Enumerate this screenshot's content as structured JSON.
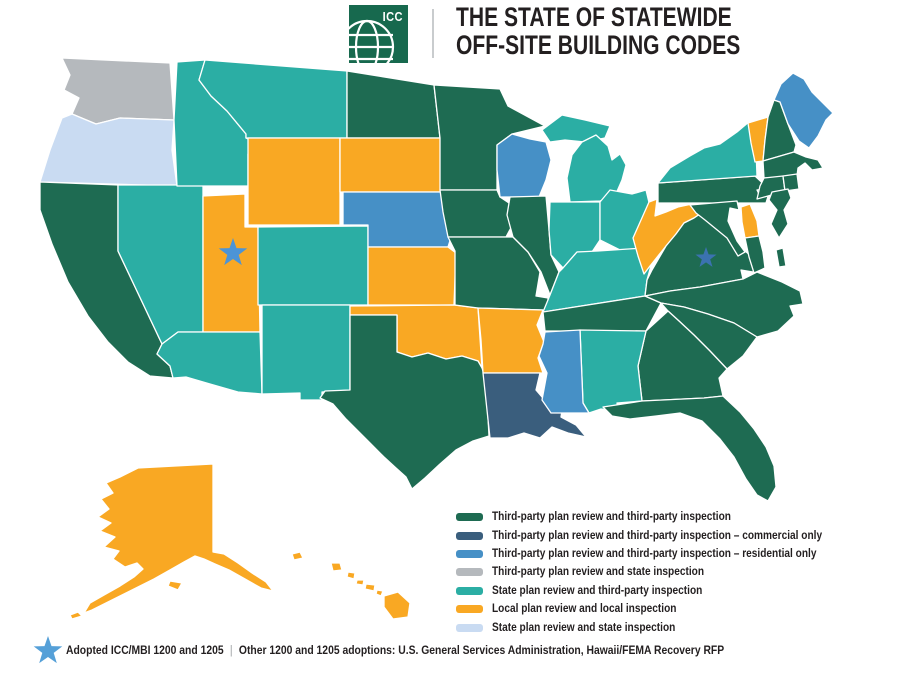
{
  "header": {
    "logo_text": "ICC",
    "logo_color": "#17694E",
    "title_line1": "THE STATE OF STATEWIDE",
    "title_line2": "OFF-SITE BUILDING CODES"
  },
  "legend": {
    "items": [
      {
        "key": "third_third",
        "label": "Third-party plan review and third-party inspection",
        "color": "#1E6B52"
      },
      {
        "key": "third_third_commercial",
        "label": "Third-party plan review and third-party inspection – commercial only",
        "color": "#3A5E7D"
      },
      {
        "key": "third_third_residential",
        "label": "Third-party plan review and third-party inspection – residential only",
        "color": "#4690C6"
      },
      {
        "key": "third_state",
        "label": "Third-party plan review and state inspection",
        "color": "#B5B9BD"
      },
      {
        "key": "state_third",
        "label": "State plan review and third-party inspection",
        "color": "#2BAEA4"
      },
      {
        "key": "local_local",
        "label": "Local plan review and local inspection",
        "color": "#F9A823"
      },
      {
        "key": "state_state",
        "label": "State plan review and state inspection",
        "color": "#C9DBF2"
      }
    ]
  },
  "footnote": {
    "star_color": "#4FX",
    "star_label": "Adopted ICC/MBI 1200 and 1205",
    "divider": "|",
    "other_text": "Other 1200 and 1205 adoptions: U.S. General Services Administration, Hawaii/FEMA Recovery RFP"
  },
  "map": {
    "border_color": "#FFFFFF",
    "stars": [
      {
        "state": "UT",
        "color": "#4C94D6"
      },
      {
        "state": "VA",
        "color": "#3B72B0"
      }
    ],
    "footnote_star_color": "#55A0D8",
    "states": [
      {
        "id": "WA",
        "name": "Washington",
        "category": "third_state"
      },
      {
        "id": "OR",
        "name": "Oregon",
        "category": "state_state"
      },
      {
        "id": "CA",
        "name": "California",
        "category": "third_third"
      },
      {
        "id": "NV",
        "name": "Nevada",
        "category": "state_third"
      },
      {
        "id": "ID",
        "name": "Idaho",
        "category": "state_third"
      },
      {
        "id": "MT",
        "name": "Montana",
        "category": "state_third"
      },
      {
        "id": "WY",
        "name": "Wyoming",
        "category": "local_local"
      },
      {
        "id": "UT",
        "name": "Utah",
        "category": "local_local"
      },
      {
        "id": "CO",
        "name": "Colorado",
        "category": "state_third"
      },
      {
        "id": "AZ",
        "name": "Arizona",
        "category": "state_third"
      },
      {
        "id": "NM",
        "name": "New Mexico",
        "category": "state_third"
      },
      {
        "id": "ND",
        "name": "North Dakota",
        "category": "third_third"
      },
      {
        "id": "SD",
        "name": "South Dakota",
        "category": "local_local"
      },
      {
        "id": "NE",
        "name": "Nebraska",
        "category": "third_third_residential"
      },
      {
        "id": "KS",
        "name": "Kansas",
        "category": "local_local"
      },
      {
        "id": "OK",
        "name": "Oklahoma",
        "category": "local_local"
      },
      {
        "id": "TX",
        "name": "Texas",
        "category": "third_third"
      },
      {
        "id": "MN",
        "name": "Minnesota",
        "category": "third_third"
      },
      {
        "id": "IA",
        "name": "Iowa",
        "category": "third_third"
      },
      {
        "id": "MO",
        "name": "Missouri",
        "category": "third_third"
      },
      {
        "id": "AR",
        "name": "Arkansas",
        "category": "local_local"
      },
      {
        "id": "LA",
        "name": "Louisiana",
        "category": "third_third_commercial"
      },
      {
        "id": "WI",
        "name": "Wisconsin",
        "category": "third_third_residential"
      },
      {
        "id": "IL",
        "name": "Illinois",
        "category": "third_third"
      },
      {
        "id": "MI",
        "name": "Michigan",
        "category": "state_third"
      },
      {
        "id": "IN",
        "name": "Indiana",
        "category": "state_third"
      },
      {
        "id": "OH",
        "name": "Ohio",
        "category": "state_third"
      },
      {
        "id": "KY",
        "name": "Kentucky",
        "category": "state_third"
      },
      {
        "id": "TN",
        "name": "Tennessee",
        "category": "third_third"
      },
      {
        "id": "MS",
        "name": "Mississippi",
        "category": "third_third_residential"
      },
      {
        "id": "AL",
        "name": "Alabama",
        "category": "state_third"
      },
      {
        "id": "GA",
        "name": "Georgia",
        "category": "third_third"
      },
      {
        "id": "FL",
        "name": "Florida",
        "category": "third_third"
      },
      {
        "id": "SC",
        "name": "South Carolina",
        "category": "third_third"
      },
      {
        "id": "NC",
        "name": "North Carolina",
        "category": "third_third"
      },
      {
        "id": "VA",
        "name": "Virginia",
        "category": "third_third"
      },
      {
        "id": "WV",
        "name": "West Virginia",
        "category": "local_local"
      },
      {
        "id": "MD",
        "name": "Maryland",
        "category": "third_third"
      },
      {
        "id": "DE",
        "name": "Delaware",
        "category": "local_local"
      },
      {
        "id": "PA",
        "name": "Pennsylvania",
        "category": "third_third"
      },
      {
        "id": "NJ",
        "name": "New Jersey",
        "category": "third_third"
      },
      {
        "id": "NY",
        "name": "New York",
        "category": "state_third"
      },
      {
        "id": "VT",
        "name": "Vermont",
        "category": "local_local"
      },
      {
        "id": "NH",
        "name": "New Hampshire",
        "category": "third_third"
      },
      {
        "id": "ME",
        "name": "Maine",
        "category": "third_third_residential"
      },
      {
        "id": "MA",
        "name": "Massachusetts",
        "category": "third_third"
      },
      {
        "id": "CT",
        "name": "Connecticut",
        "category": "third_third"
      },
      {
        "id": "RI",
        "name": "Rhode Island",
        "category": "third_third"
      },
      {
        "id": "AK",
        "name": "Alaska",
        "category": "local_local"
      },
      {
        "id": "HI",
        "name": "Hawaii",
        "category": "local_local"
      }
    ]
  }
}
